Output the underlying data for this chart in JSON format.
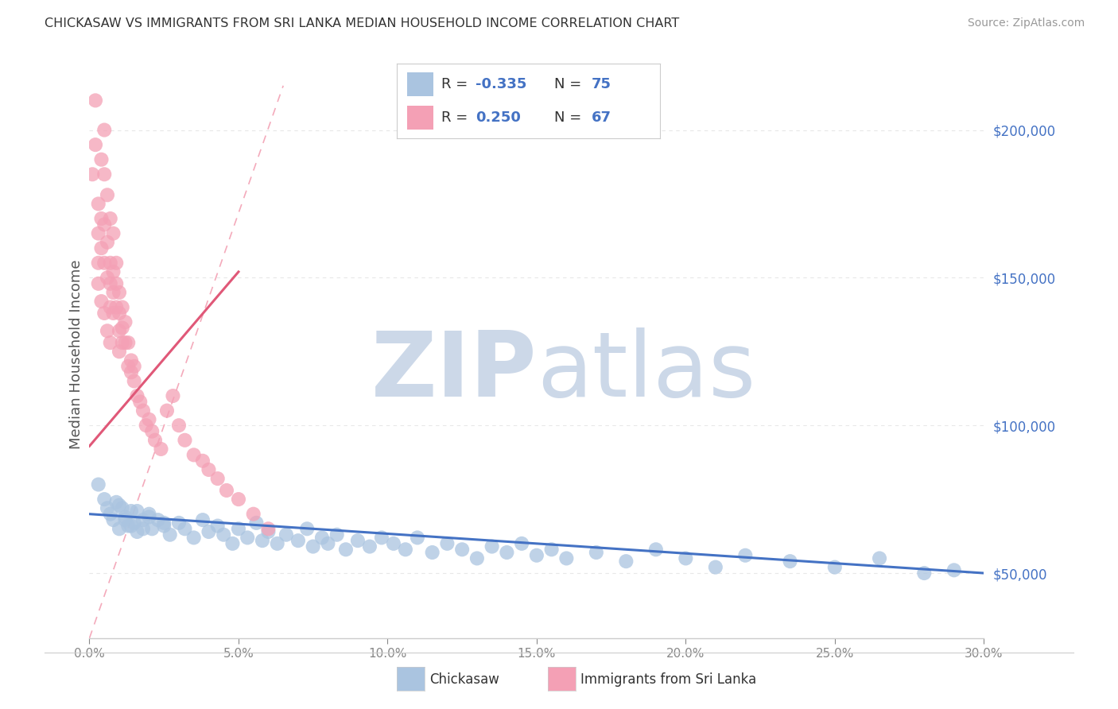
{
  "title": "CHICKASAW VS IMMIGRANTS FROM SRI LANKA MEDIAN HOUSEHOLD INCOME CORRELATION CHART",
  "source": "Source: ZipAtlas.com",
  "ylabel": "Median Household Income",
  "xlim": [
    0.0,
    30.0
  ],
  "ylim": [
    28000,
    220000
  ],
  "yticks": [
    50000,
    100000,
    150000,
    200000
  ],
  "series1_name": "Chickasaw",
  "series1_color": "#aac4e0",
  "series1_line_color": "#4472c4",
  "series2_name": "Immigrants from Sri Lanka",
  "series2_color": "#f4a0b5",
  "series2_line_color": "#e05878",
  "R_value_color": "#4472c4",
  "N_value_color": "#4472c4",
  "background_color": "#ffffff",
  "watermark_color": "#ccd8e8",
  "title_color": "#333333",
  "source_color": "#999999",
  "axis_color": "#cccccc",
  "ylabel_color": "#555555",
  "xticklabel_color": "#888888",
  "yticklabel_color": "#4472c4",
  "grid_color": "#e8e8e8",
  "ref_line_color": "#f4aabb",
  "legend_border_color": "#cccccc",
  "chickasaw_x": [
    0.3,
    0.5,
    0.6,
    0.7,
    0.8,
    0.9,
    1.0,
    1.1,
    1.2,
    1.3,
    1.4,
    1.5,
    1.6,
    1.8,
    2.0,
    2.1,
    2.3,
    2.5,
    2.7,
    3.0,
    3.2,
    3.5,
    3.8,
    4.0,
    4.3,
    4.5,
    4.8,
    5.0,
    5.3,
    5.6,
    5.8,
    6.0,
    6.3,
    6.6,
    7.0,
    7.3,
    7.5,
    7.8,
    8.0,
    8.3,
    8.6,
    9.0,
    9.4,
    9.8,
    10.2,
    10.6,
    11.0,
    11.5,
    12.0,
    12.5,
    13.0,
    13.5,
    14.0,
    14.5,
    15.0,
    15.5,
    16.0,
    17.0,
    18.0,
    19.0,
    20.0,
    21.0,
    22.0,
    23.5,
    25.0,
    26.5,
    28.0,
    29.0,
    1.0,
    1.2,
    1.4,
    1.6,
    1.8,
    2.0,
    2.5
  ],
  "chickasaw_y": [
    80000,
    75000,
    72000,
    70000,
    68000,
    74000,
    65000,
    72000,
    69000,
    66000,
    71000,
    67000,
    64000,
    68000,
    70000,
    65000,
    68000,
    66000,
    63000,
    67000,
    65000,
    62000,
    68000,
    64000,
    66000,
    63000,
    60000,
    65000,
    62000,
    67000,
    61000,
    64000,
    60000,
    63000,
    61000,
    65000,
    59000,
    62000,
    60000,
    63000,
    58000,
    61000,
    59000,
    62000,
    60000,
    58000,
    62000,
    57000,
    60000,
    58000,
    55000,
    59000,
    57000,
    60000,
    56000,
    58000,
    55000,
    57000,
    54000,
    58000,
    55000,
    52000,
    56000,
    54000,
    52000,
    55000,
    50000,
    51000,
    73000,
    68000,
    66000,
    71000,
    65000,
    69000,
    67000
  ],
  "srilanka_x": [
    0.1,
    0.2,
    0.2,
    0.3,
    0.3,
    0.3,
    0.4,
    0.4,
    0.4,
    0.5,
    0.5,
    0.5,
    0.5,
    0.6,
    0.6,
    0.6,
    0.7,
    0.7,
    0.7,
    0.7,
    0.8,
    0.8,
    0.8,
    0.8,
    0.9,
    0.9,
    0.9,
    1.0,
    1.0,
    1.0,
    1.0,
    1.1,
    1.1,
    1.1,
    1.2,
    1.2,
    1.3,
    1.3,
    1.4,
    1.4,
    1.5,
    1.5,
    1.6,
    1.7,
    1.8,
    1.9,
    2.0,
    2.1,
    2.2,
    2.4,
    2.6,
    2.8,
    3.0,
    3.2,
    3.5,
    3.8,
    4.0,
    4.3,
    4.6,
    5.0,
    5.5,
    6.0,
    0.3,
    0.4,
    0.5,
    0.6,
    0.7
  ],
  "srilanka_y": [
    185000,
    210000,
    195000,
    175000,
    165000,
    155000,
    190000,
    170000,
    160000,
    200000,
    185000,
    168000,
    155000,
    178000,
    162000,
    150000,
    170000,
    155000,
    148000,
    140000,
    165000,
    152000,
    145000,
    138000,
    155000,
    148000,
    140000,
    145000,
    138000,
    132000,
    125000,
    140000,
    133000,
    128000,
    135000,
    128000,
    128000,
    120000,
    122000,
    118000,
    120000,
    115000,
    110000,
    108000,
    105000,
    100000,
    102000,
    98000,
    95000,
    92000,
    105000,
    110000,
    100000,
    95000,
    90000,
    88000,
    85000,
    82000,
    78000,
    75000,
    70000,
    65000,
    148000,
    142000,
    138000,
    132000,
    128000
  ]
}
